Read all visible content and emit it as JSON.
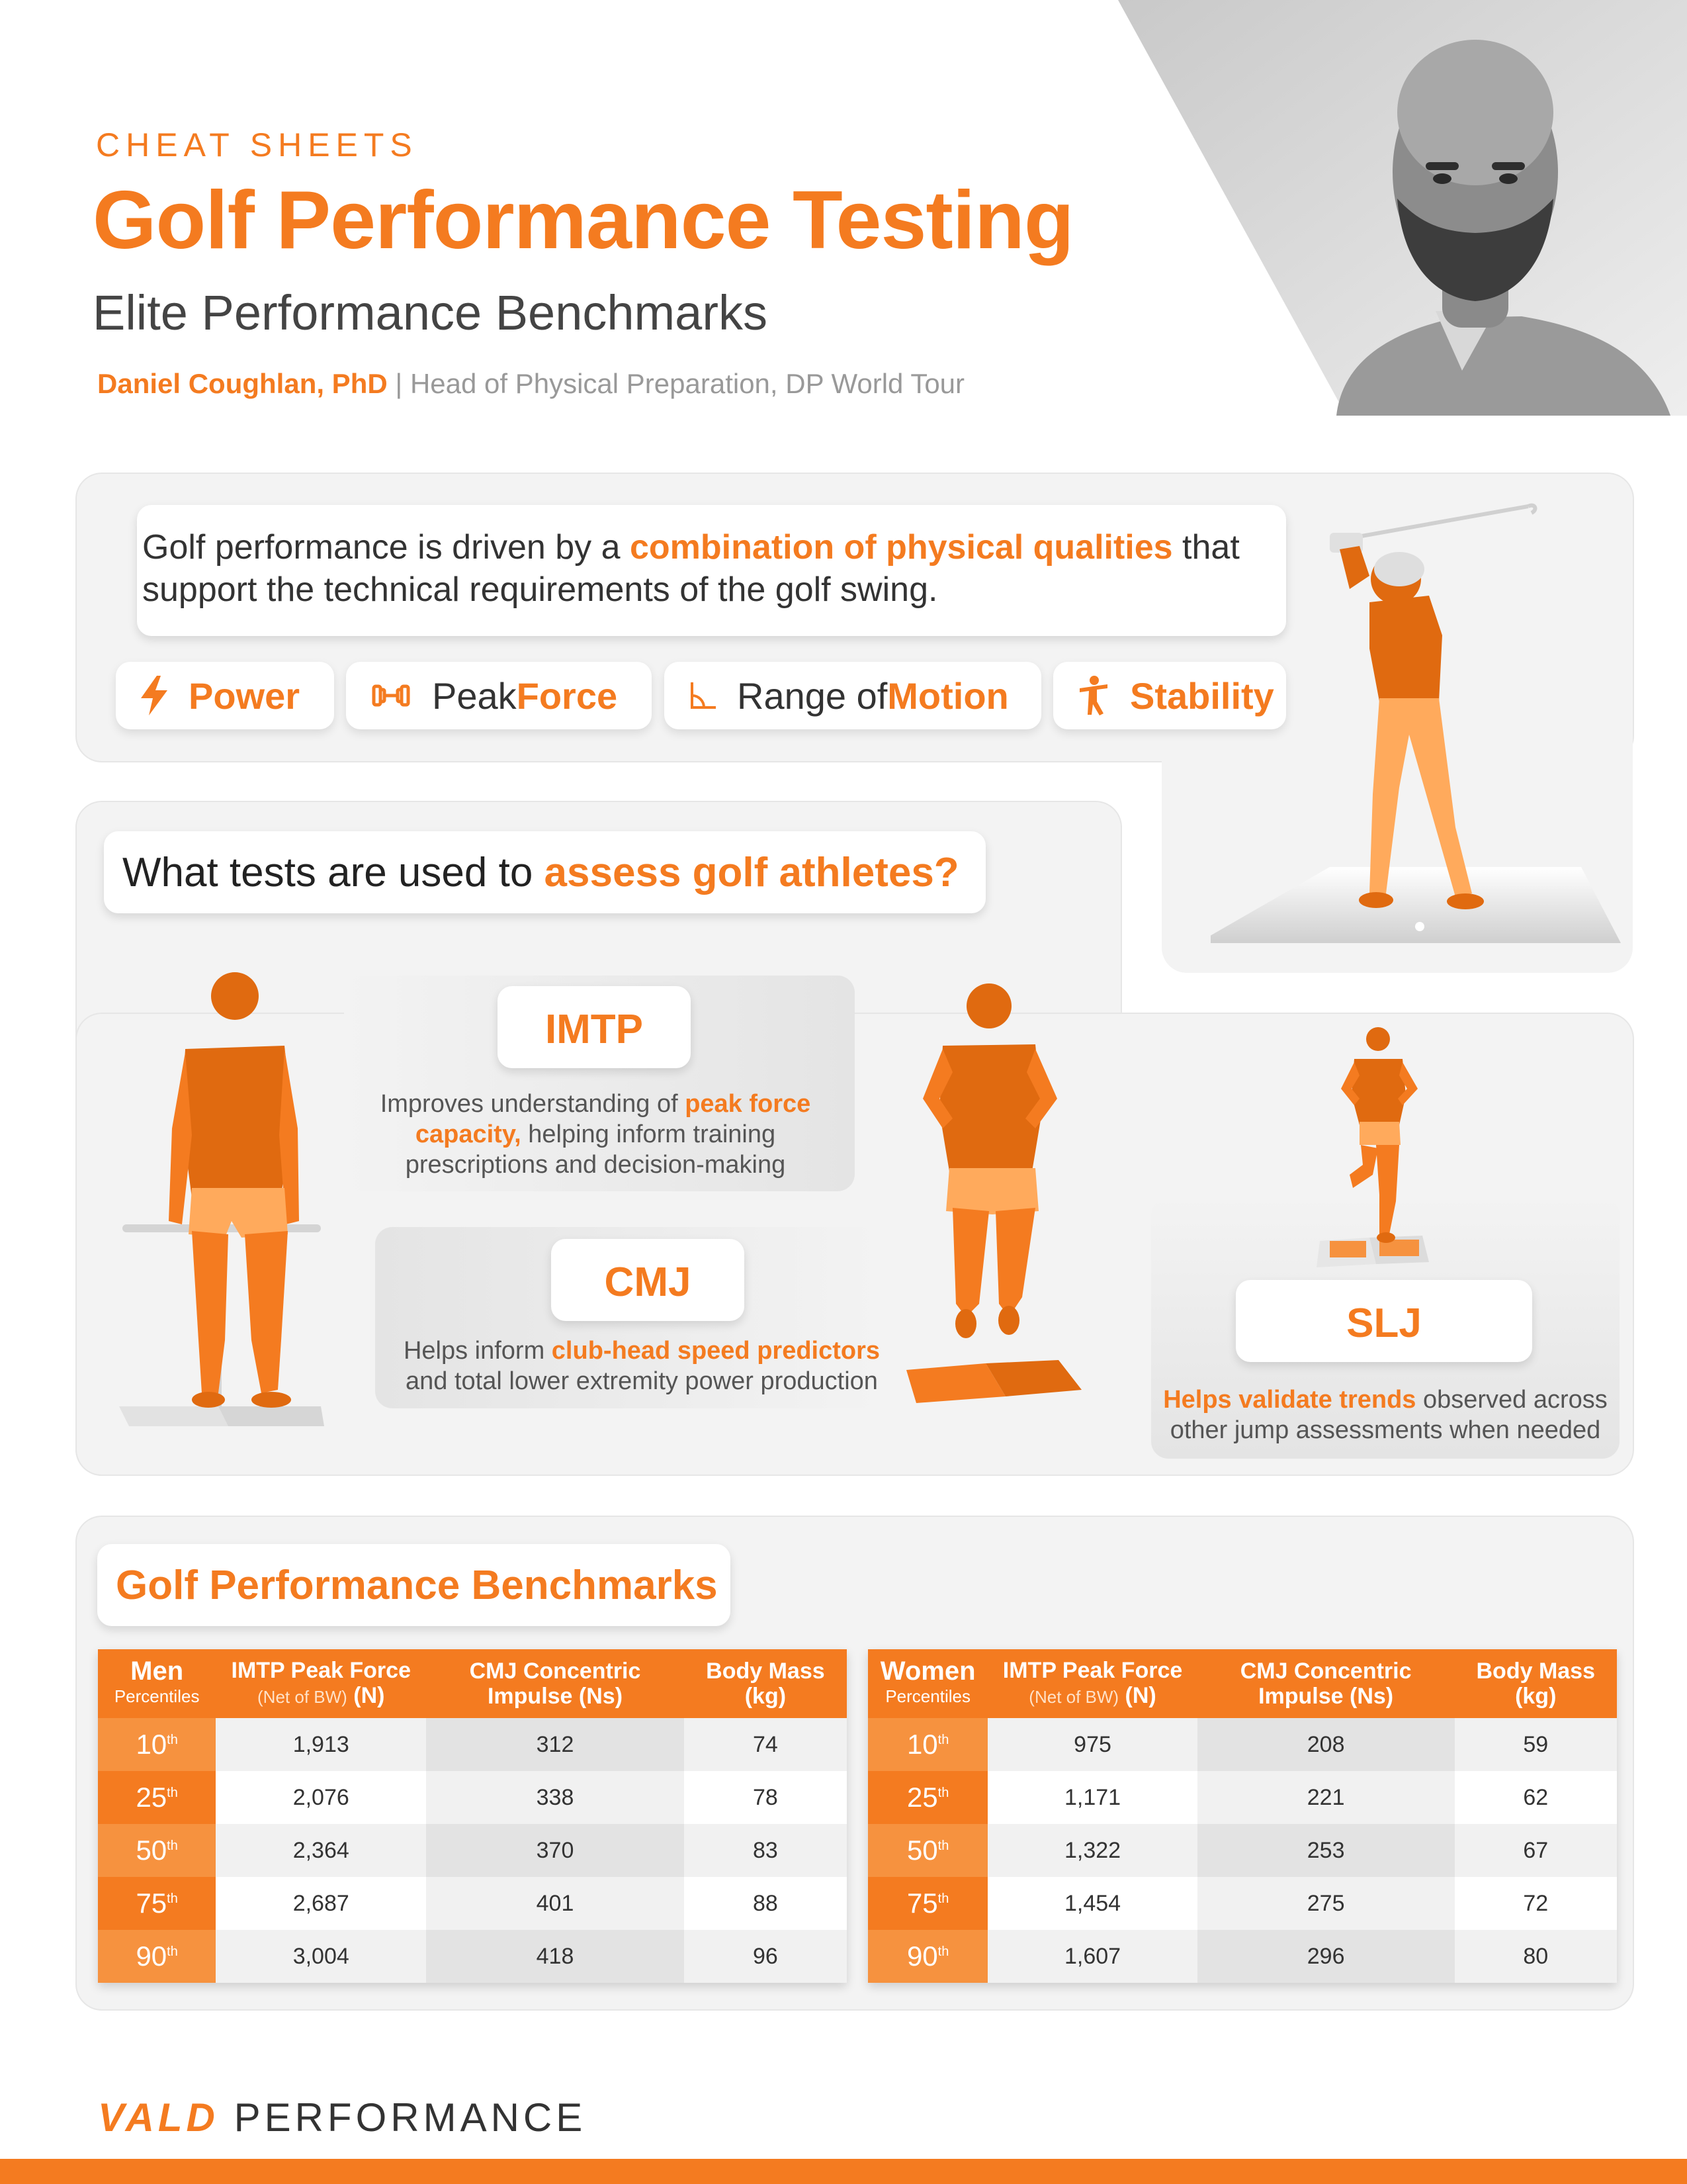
{
  "header": {
    "kicker": "CHEAT SHEETS",
    "title": "Golf Performance Testing",
    "subtitle": "Elite Performance Benchmarks",
    "author": "Daniel Coughlan, PhD",
    "author_role": "| Head of Physical Preparation, DP World Tour"
  },
  "intro": {
    "text_before": "Golf performance is driven by a ",
    "text_highlight": "combination of physical qualities",
    "text_after": " that support the technical requirements of the golf swing."
  },
  "qualities": [
    {
      "plain": "",
      "highlight": "Power",
      "icon": "lightning-icon"
    },
    {
      "plain": "Peak ",
      "highlight": "Force",
      "icon": "dumbbell-icon"
    },
    {
      "plain": "Range of ",
      "highlight": "Motion",
      "icon": "angle-icon"
    },
    {
      "plain": "",
      "highlight": "Stability",
      "icon": "balance-figure-icon"
    }
  ],
  "tests_section": {
    "question_plain": "What tests are used to ",
    "question_highlight": "assess golf athletes?",
    "tests": [
      {
        "name": "IMTP",
        "desc_before": "Improves understanding of ",
        "desc_highlight": "peak force capacity,",
        "desc_after": " helping inform training prescriptions and decision-making"
      },
      {
        "name": "CMJ",
        "desc_before": "Helps inform ",
        "desc_highlight": "club-head speed predictors",
        "desc_after": " and total lower extremity power production"
      },
      {
        "name": "SLJ",
        "desc_before": "",
        "desc_highlight": "Helps validate trends",
        "desc_after": " observed across other jump assessments when needed"
      }
    ]
  },
  "benchmarks": {
    "title": "Golf Performance Benchmarks",
    "headers": {
      "imtp": "IMTP Peak Force",
      "imtp_sub": "(Net of BW)",
      "imtp_unit": "(N)",
      "cmj": "CMJ Concentric Impulse (Ns)",
      "mass": "Body Mass (kg)",
      "percentiles": "Percentiles"
    },
    "men": {
      "label": "Men",
      "rows": [
        {
          "p": "10",
          "imtp": "1,913",
          "cmj": "312",
          "mass": "74"
        },
        {
          "p": "25",
          "imtp": "2,076",
          "cmj": "338",
          "mass": "78"
        },
        {
          "p": "50",
          "imtp": "2,364",
          "cmj": "370",
          "mass": "83"
        },
        {
          "p": "75",
          "imtp": "2,687",
          "cmj": "401",
          "mass": "88"
        },
        {
          "p": "90",
          "imtp": "3,004",
          "cmj": "418",
          "mass": "96"
        }
      ]
    },
    "women": {
      "label": "Women",
      "rows": [
        {
          "p": "10",
          "imtp": "975",
          "cmj": "208",
          "mass": "59"
        },
        {
          "p": "25",
          "imtp": "1,171",
          "cmj": "221",
          "mass": "62"
        },
        {
          "p": "50",
          "imtp": "1,322",
          "cmj": "253",
          "mass": "67"
        },
        {
          "p": "75",
          "imtp": "1,454",
          "cmj": "275",
          "mass": "72"
        },
        {
          "p": "90",
          "imtp": "1,607",
          "cmj": "296",
          "mass": "80"
        }
      ]
    },
    "ordinal_suffix": "th"
  },
  "footer": {
    "brand": "VALD",
    "brand_sub": "PERFORMANCE"
  },
  "colors": {
    "accent": "#f47b20",
    "accent_light": "#f6923f",
    "figure_dark": "#e06a10",
    "figure_light": "#ffaa5c"
  }
}
